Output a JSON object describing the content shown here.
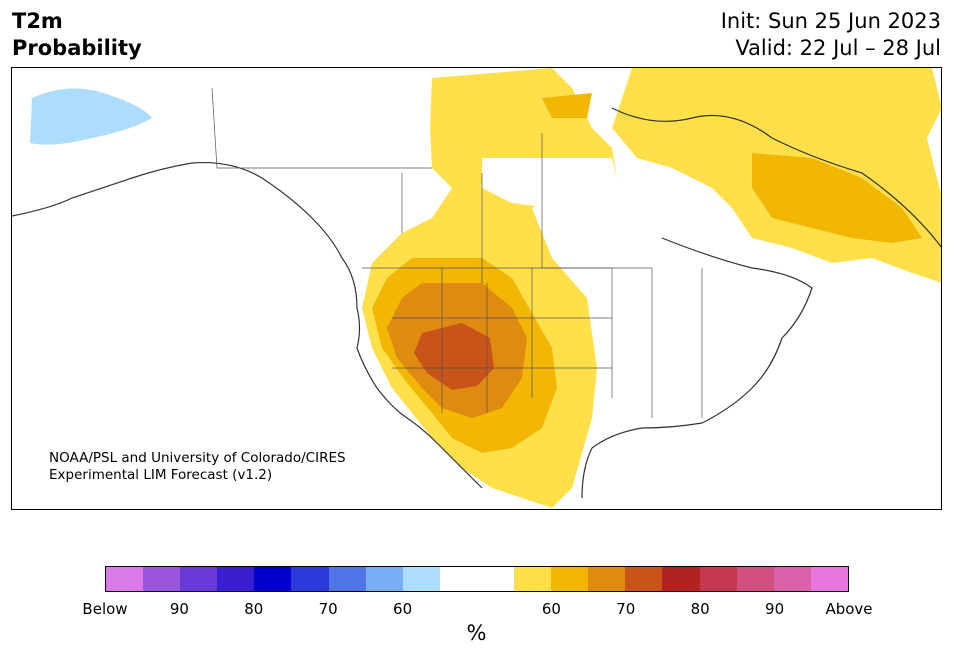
{
  "title": {
    "left": [
      "T2m",
      "Probability"
    ],
    "right": [
      "Init: Sun 25 Jun 2023",
      "Valid: 22 Jul – 28 Jul"
    ]
  },
  "credit": [
    "NOAA/PSL and University of Colorado/CIRES",
    "Experimental LIM Forecast (v1.2)"
  ],
  "colorbar": {
    "colors": [
      "#d97ae8",
      "#9a55e0",
      "#6a38d6",
      "#3a1fd0",
      "#0000cc",
      "#2a3ad8",
      "#4f74e8",
      "#77aef4",
      "#aedcfc",
      "#ffffff",
      "#ffffff",
      "#ffe04a",
      "#f2b705",
      "#df8a10",
      "#c8541a",
      "#b22222",
      "#c63850",
      "#d24f82",
      "#da61aa",
      "#e776df"
    ],
    "tick_labels": [
      "Below",
      "90",
      "80",
      "70",
      "60",
      "60",
      "70",
      "80",
      "90",
      "Above"
    ],
    "unit": "%"
  },
  "legend_colors": {
    "60": "#ffe04a",
    "70": "#f2b705",
    "80": "#df8a10",
    "90": "#c8541a",
    "below_60": "#aedcfc"
  }
}
